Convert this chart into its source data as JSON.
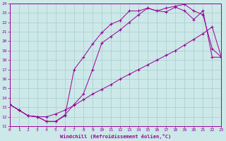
{
  "xlabel": "Windchill (Refroidissement éolien,°C)",
  "bg_color": "#cce8e8",
  "line_color": "#990099",
  "grid_color": "#aacccc",
  "xmin": 0,
  "xmax": 23,
  "ymin": 11,
  "ymax": 24,
  "line1_x": [
    0,
    1,
    2,
    3,
    4,
    5,
    6,
    7,
    8,
    9,
    10,
    11,
    12,
    13,
    14,
    15,
    16,
    17,
    18,
    19,
    20,
    21,
    22,
    23
  ],
  "line1_y": [
    13.3,
    12.7,
    12.1,
    12.0,
    11.5,
    11.5,
    12.2,
    13.3,
    14.4,
    17.0,
    19.8,
    20.5,
    21.2,
    22.0,
    22.8,
    23.5,
    23.2,
    23.5,
    23.7,
    23.9,
    23.2,
    22.8,
    19.2,
    18.3
  ],
  "line2_x": [
    0,
    1,
    2,
    3,
    4,
    5,
    6,
    7,
    8,
    9,
    10,
    11,
    12,
    13,
    14,
    15,
    16,
    17,
    18,
    19,
    20,
    21,
    22,
    23
  ],
  "line2_y": [
    13.3,
    12.7,
    12.1,
    12.0,
    11.5,
    11.5,
    12.1,
    17.0,
    18.3,
    19.7,
    20.9,
    21.8,
    22.2,
    23.2,
    23.2,
    23.5,
    23.2,
    23.1,
    23.6,
    23.2,
    22.3,
    23.2,
    18.3,
    18.3
  ],
  "line3_x": [
    0,
    1,
    2,
    3,
    4,
    5,
    6,
    7,
    8,
    9,
    10,
    11,
    12,
    13,
    14,
    15,
    16,
    17,
    18,
    19,
    20,
    21,
    22,
    23
  ],
  "line3_y": [
    13.3,
    12.7,
    12.1,
    12.0,
    12.0,
    12.3,
    12.7,
    13.2,
    13.8,
    14.4,
    14.9,
    15.4,
    16.0,
    16.5,
    17.0,
    17.5,
    18.0,
    18.5,
    19.0,
    19.6,
    20.2,
    20.8,
    21.5,
    18.3
  ]
}
